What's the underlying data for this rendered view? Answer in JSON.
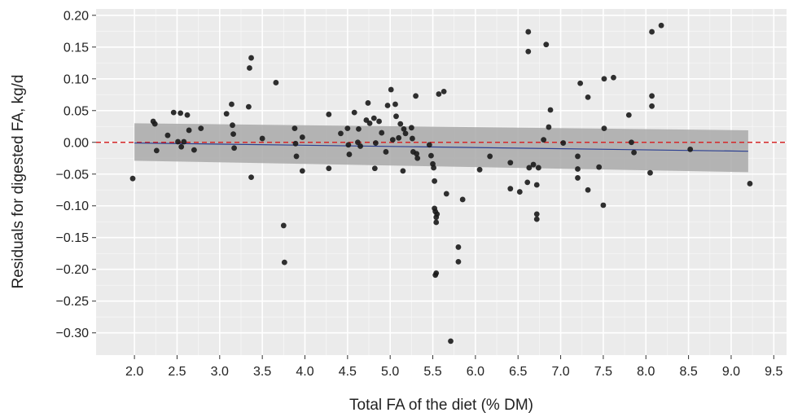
{
  "chart_data": {
    "type": "scatter",
    "title": "",
    "xlabel": "Total FA of the diet (% DM)",
    "ylabel": "Residuals for digested FA, kg/d",
    "xlim": [
      1.55,
      9.65
    ],
    "ylim": [
      -0.335,
      0.21
    ],
    "xticks": [
      2.0,
      2.5,
      3.0,
      3.5,
      4.0,
      4.5,
      5.0,
      5.5,
      6.0,
      6.5,
      7.0,
      7.5,
      8.0,
      8.5,
      9.0,
      9.5
    ],
    "xtick_labels": [
      "2.0",
      "2.5",
      "3.0",
      "3.5",
      "4.0",
      "4.5",
      "5.0",
      "5.5",
      "6.0",
      "6.5",
      "7.0",
      "7.5",
      "8.0",
      "8.5",
      "9.0",
      "9.5"
    ],
    "yticks": [
      0.2,
      0.15,
      0.1,
      0.05,
      0.0,
      -0.05,
      -0.1,
      -0.15,
      -0.2,
      -0.25,
      -0.3
    ],
    "ytick_labels": [
      "0.20",
      "0.15",
      "0.10",
      "0.05",
      "0.00",
      "−0.05",
      "−0.10",
      "−0.15",
      "−0.20",
      "−0.25",
      "−0.30"
    ],
    "grid": true,
    "reference_line": {
      "y": 0.0,
      "style": "dashed",
      "color": "#d62728"
    },
    "regression": {
      "x": [
        2.0,
        9.2
      ],
      "y": [
        -0.001,
        -0.014
      ],
      "ci_upper": [
        0.03,
        0.019
      ],
      "ci_lower": [
        -0.029,
        -0.047
      ],
      "color": "#2b3f91",
      "band_color": "#a9a9a9"
    },
    "points": [
      {
        "x": 1.98,
        "y": -0.057
      },
      {
        "x": 2.22,
        "y": 0.033
      },
      {
        "x": 2.24,
        "y": 0.029
      },
      {
        "x": 2.26,
        "y": -0.013
      },
      {
        "x": 2.39,
        "y": 0.011
      },
      {
        "x": 2.46,
        "y": 0.047
      },
      {
        "x": 2.51,
        "y": 0.001
      },
      {
        "x": 2.54,
        "y": 0.046
      },
      {
        "x": 2.55,
        "y": -0.007
      },
      {
        "x": 2.58,
        "y": 0.001
      },
      {
        "x": 2.62,
        "y": 0.043
      },
      {
        "x": 2.64,
        "y": 0.019
      },
      {
        "x": 2.7,
        "y": -0.012
      },
      {
        "x": 2.78,
        "y": 0.022
      },
      {
        "x": 3.08,
        "y": 0.045
      },
      {
        "x": 3.14,
        "y": 0.06
      },
      {
        "x": 3.15,
        "y": 0.027
      },
      {
        "x": 3.16,
        "y": 0.013
      },
      {
        "x": 3.17,
        "y": -0.009
      },
      {
        "x": 3.34,
        "y": 0.056
      },
      {
        "x": 3.35,
        "y": 0.117
      },
      {
        "x": 3.37,
        "y": 0.133
      },
      {
        "x": 3.37,
        "y": -0.055
      },
      {
        "x": 3.5,
        "y": 0.006
      },
      {
        "x": 3.66,
        "y": 0.094
      },
      {
        "x": 3.75,
        "y": -0.131
      },
      {
        "x": 3.76,
        "y": -0.189
      },
      {
        "x": 3.88,
        "y": 0.022
      },
      {
        "x": 3.89,
        "y": -0.002
      },
      {
        "x": 3.9,
        "y": -0.022
      },
      {
        "x": 3.97,
        "y": 0.008
      },
      {
        "x": 3.97,
        "y": -0.045
      },
      {
        "x": 4.28,
        "y": 0.044
      },
      {
        "x": 4.28,
        "y": -0.041
      },
      {
        "x": 4.42,
        "y": 0.014
      },
      {
        "x": 4.5,
        "y": 0.022
      },
      {
        "x": 4.51,
        "y": -0.004
      },
      {
        "x": 4.52,
        "y": -0.019
      },
      {
        "x": 4.58,
        "y": 0.047
      },
      {
        "x": 4.62,
        "y": 0.0
      },
      {
        "x": 4.63,
        "y": 0.021
      },
      {
        "x": 4.65,
        "y": -0.006
      },
      {
        "x": 4.72,
        "y": 0.035
      },
      {
        "x": 4.74,
        "y": 0.062
      },
      {
        "x": 4.76,
        "y": 0.03
      },
      {
        "x": 4.81,
        "y": 0.038
      },
      {
        "x": 4.82,
        "y": -0.041
      },
      {
        "x": 4.83,
        "y": -0.001
      },
      {
        "x": 4.87,
        "y": 0.033
      },
      {
        "x": 4.9,
        "y": 0.015
      },
      {
        "x": 4.95,
        "y": -0.015
      },
      {
        "x": 4.97,
        "y": 0.058
      },
      {
        "x": 5.01,
        "y": 0.083
      },
      {
        "x": 5.03,
        "y": 0.004
      },
      {
        "x": 5.06,
        "y": 0.06
      },
      {
        "x": 5.07,
        "y": 0.041
      },
      {
        "x": 5.1,
        "y": 0.007
      },
      {
        "x": 5.12,
        "y": 0.029
      },
      {
        "x": 5.15,
        "y": -0.045
      },
      {
        "x": 5.16,
        "y": 0.021
      },
      {
        "x": 5.18,
        "y": 0.014
      },
      {
        "x": 5.25,
        "y": 0.023
      },
      {
        "x": 5.26,
        "y": 0.006
      },
      {
        "x": 5.27,
        "y": -0.015
      },
      {
        "x": 5.3,
        "y": 0.073
      },
      {
        "x": 5.31,
        "y": -0.018
      },
      {
        "x": 5.32,
        "y": -0.025
      },
      {
        "x": 5.46,
        "y": -0.004
      },
      {
        "x": 5.48,
        "y": -0.021
      },
      {
        "x": 5.5,
        "y": -0.034
      },
      {
        "x": 5.51,
        "y": -0.04
      },
      {
        "x": 5.52,
        "y": -0.061
      },
      {
        "x": 5.52,
        "y": -0.104
      },
      {
        "x": 5.53,
        "y": -0.109
      },
      {
        "x": 5.54,
        "y": -0.118
      },
      {
        "x": 5.54,
        "y": -0.126
      },
      {
        "x": 5.55,
        "y": -0.113
      },
      {
        "x": 5.54,
        "y": -0.206
      },
      {
        "x": 5.53,
        "y": -0.209
      },
      {
        "x": 5.57,
        "y": 0.076
      },
      {
        "x": 5.63,
        "y": 0.08
      },
      {
        "x": 5.66,
        "y": -0.081
      },
      {
        "x": 5.71,
        "y": -0.313
      },
      {
        "x": 5.8,
        "y": -0.165
      },
      {
        "x": 5.8,
        "y": -0.188
      },
      {
        "x": 5.85,
        "y": -0.09
      },
      {
        "x": 6.05,
        "y": -0.043
      },
      {
        "x": 6.17,
        "y": -0.022
      },
      {
        "x": 6.41,
        "y": -0.032
      },
      {
        "x": 6.41,
        "y": -0.073
      },
      {
        "x": 6.52,
        "y": -0.078
      },
      {
        "x": 6.61,
        "y": -0.063
      },
      {
        "x": 6.62,
        "y": 0.174
      },
      {
        "x": 6.62,
        "y": 0.143
      },
      {
        "x": 6.63,
        "y": -0.04
      },
      {
        "x": 6.68,
        "y": -0.035
      },
      {
        "x": 6.72,
        "y": -0.067
      },
      {
        "x": 6.72,
        "y": -0.113
      },
      {
        "x": 6.72,
        "y": -0.121
      },
      {
        "x": 6.74,
        "y": -0.04
      },
      {
        "x": 6.8,
        "y": 0.004
      },
      {
        "x": 6.83,
        "y": 0.154
      },
      {
        "x": 6.86,
        "y": 0.024
      },
      {
        "x": 6.88,
        "y": 0.051
      },
      {
        "x": 7.03,
        "y": -0.001
      },
      {
        "x": 7.2,
        "y": -0.022
      },
      {
        "x": 7.2,
        "y": -0.042
      },
      {
        "x": 7.2,
        "y": -0.056
      },
      {
        "x": 7.23,
        "y": 0.093
      },
      {
        "x": 7.32,
        "y": 0.071
      },
      {
        "x": 7.32,
        "y": -0.075
      },
      {
        "x": 7.45,
        "y": -0.039
      },
      {
        "x": 7.5,
        "y": -0.099
      },
      {
        "x": 7.51,
        "y": 0.1
      },
      {
        "x": 7.51,
        "y": 0.022
      },
      {
        "x": 7.62,
        "y": 0.102
      },
      {
        "x": 7.8,
        "y": 0.043
      },
      {
        "x": 7.83,
        "y": 0.0
      },
      {
        "x": 7.86,
        "y": -0.016
      },
      {
        "x": 8.05,
        "y": -0.048
      },
      {
        "x": 8.07,
        "y": 0.174
      },
      {
        "x": 8.07,
        "y": 0.073
      },
      {
        "x": 8.07,
        "y": 0.057
      },
      {
        "x": 8.18,
        "y": 0.184
      },
      {
        "x": 8.52,
        "y": -0.011
      },
      {
        "x": 9.22,
        "y": -0.065
      }
    ]
  }
}
